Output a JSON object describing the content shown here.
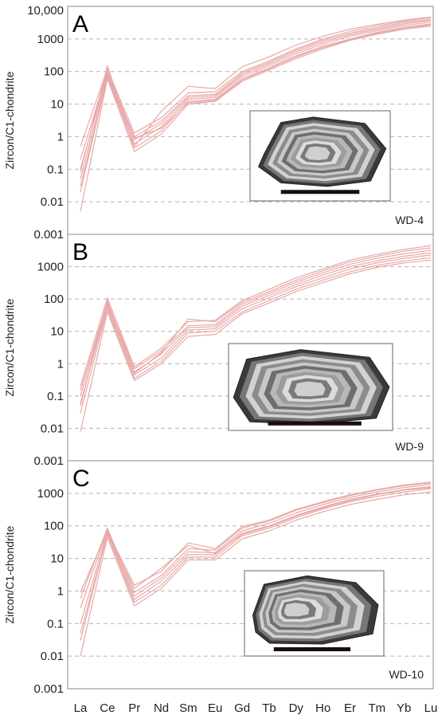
{
  "chart_data": [
    {
      "type": "line",
      "panel_letter": "A",
      "sample_label": "WD-4",
      "ylabel": "Zircon/C1-chondrite",
      "yscale": "log",
      "ylim": [
        0.001,
        10000
      ],
      "yticks": [
        "0.001",
        "0.01",
        "0.1",
        "1",
        "10",
        "100",
        "1000",
        "10,000"
      ],
      "categories": [
        "La",
        "Ce",
        "Pr",
        "Nd",
        "Sm",
        "Eu",
        "Gd",
        "Tb",
        "Dy",
        "Ho",
        "Er",
        "Tm",
        "Yb",
        "Lu"
      ],
      "grid": true,
      "line_color": "#e8a8a8",
      "series": [
        {
          "values": [
            0.005,
            60,
            0.35,
            1.2,
            10,
            12,
            50,
            110,
            250,
            500,
            900,
            1400,
            2000,
            2500
          ]
        },
        {
          "values": [
            0.02,
            70,
            0.45,
            1.5,
            12,
            14,
            60,
            130,
            300,
            600,
            1000,
            1600,
            2300,
            2900
          ]
        },
        {
          "values": [
            0.05,
            80,
            0.6,
            2,
            14,
            16,
            70,
            150,
            350,
            700,
            1200,
            1800,
            2600,
            3300
          ]
        },
        {
          "values": [
            0.1,
            90,
            0.8,
            2.5,
            16,
            18,
            80,
            170,
            400,
            800,
            1350,
            2000,
            2900,
            3700
          ]
        },
        {
          "values": [
            0.2,
            100,
            1,
            3,
            18,
            20,
            90,
            190,
            450,
            900,
            1500,
            2200,
            3200,
            4000
          ]
        },
        {
          "values": [
            0.5,
            120,
            1.3,
            3.8,
            22,
            24,
            100,
            210,
            500,
            1000,
            1700,
            2500,
            3500,
            4500
          ]
        },
        {
          "values": [
            0.08,
            150,
            0.5,
            6,
            35,
            30,
            140,
            280,
            650,
            1200,
            2000,
            2800,
            3800,
            4700
          ]
        },
        {
          "values": [
            0.03,
            65,
            0.9,
            1.8,
            11,
            13,
            55,
            120,
            280,
            550,
            950,
            1500,
            2100,
            2700
          ]
        }
      ]
    },
    {
      "type": "line",
      "panel_letter": "B",
      "sample_label": "WD-9",
      "ylabel": "Zircon/C1-chondrite",
      "yscale": "log",
      "ylim": [
        0.001,
        10000
      ],
      "yticks": [
        "0.001",
        "0.01",
        "0.1",
        "1",
        "10",
        "100",
        "1000"
      ],
      "categories": [
        "La",
        "Ce",
        "Pr",
        "Nd",
        "Sm",
        "Eu",
        "Gd",
        "Tb",
        "Dy",
        "Ho",
        "Er",
        "Tm",
        "Yb",
        "Lu"
      ],
      "grid": true,
      "line_color": "#e8a8a8",
      "series": [
        {
          "values": [
            0.008,
            40,
            0.3,
            1,
            7,
            8,
            35,
            75,
            170,
            320,
            600,
            950,
            1300,
            1600
          ]
        },
        {
          "values": [
            0.03,
            50,
            0.35,
            1.2,
            9,
            10,
            40,
            90,
            200,
            380,
            700,
            1100,
            1500,
            1900
          ]
        },
        {
          "values": [
            0.06,
            60,
            0.45,
            1.5,
            11,
            12,
            50,
            110,
            240,
            450,
            850,
            1300,
            1800,
            2300
          ]
        },
        {
          "values": [
            0.1,
            70,
            0.55,
            2,
            13,
            14,
            60,
            130,
            280,
            550,
            1000,
            1500,
            2100,
            2700
          ]
        },
        {
          "values": [
            0.15,
            80,
            0.7,
            2.5,
            15,
            16,
            70,
            150,
            330,
            650,
            1200,
            1800,
            2500,
            3200
          ]
        },
        {
          "values": [
            0.2,
            110,
            0.8,
            3,
            20,
            22,
            90,
            200,
            450,
            850,
            1600,
            2400,
            3400,
            4500
          ]
        },
        {
          "values": [
            0.05,
            90,
            0.5,
            2.2,
            24,
            20,
            80,
            170,
            380,
            750,
            1400,
            2100,
            3000,
            3800
          ]
        }
      ]
    },
    {
      "type": "line",
      "panel_letter": "C",
      "sample_label": "WD-10",
      "ylabel": "Zircon/C1-chondrite",
      "yscale": "log",
      "ylim": [
        0.001,
        10000
      ],
      "yticks": [
        "0.001",
        "0.01",
        "0.1",
        "1",
        "10",
        "100",
        "1000"
      ],
      "categories": [
        "La",
        "Ce",
        "Pr",
        "Nd",
        "Sm",
        "Eu",
        "Gd",
        "Tb",
        "Dy",
        "Ho",
        "Er",
        "Tm",
        "Yb",
        "Lu"
      ],
      "grid": true,
      "line_color": "#e8a8a8",
      "series": [
        {
          "values": [
            0.01,
            45,
            0.35,
            1.2,
            9,
            9,
            40,
            70,
            150,
            270,
            450,
            650,
            900,
            1100
          ]
        },
        {
          "values": [
            0.05,
            55,
            0.45,
            1.5,
            11,
            11,
            50,
            85,
            180,
            330,
            550,
            800,
            1100,
            1400
          ]
        },
        {
          "values": [
            0.1,
            65,
            0.55,
            2,
            13,
            13,
            60,
            100,
            210,
            380,
            650,
            950,
            1300,
            1600
          ]
        },
        {
          "values": [
            0.3,
            75,
            0.7,
            2.5,
            16,
            15,
            70,
            120,
            250,
            450,
            750,
            1100,
            1500,
            1900
          ]
        },
        {
          "values": [
            0.6,
            85,
            0.9,
            3,
            20,
            18,
            85,
            140,
            300,
            520,
            850,
            1250,
            1700,
            2100
          ]
        },
        {
          "values": [
            0.9,
            70,
            1.5,
            4,
            30,
            20,
            95,
            150,
            320,
            550,
            900,
            1300,
            1800,
            2200
          ]
        },
        {
          "values": [
            0.03,
            60,
            1.2,
            5,
            25,
            14,
            55,
            95,
            200,
            360,
            600,
            900,
            1250,
            1500
          ]
        }
      ]
    }
  ]
}
